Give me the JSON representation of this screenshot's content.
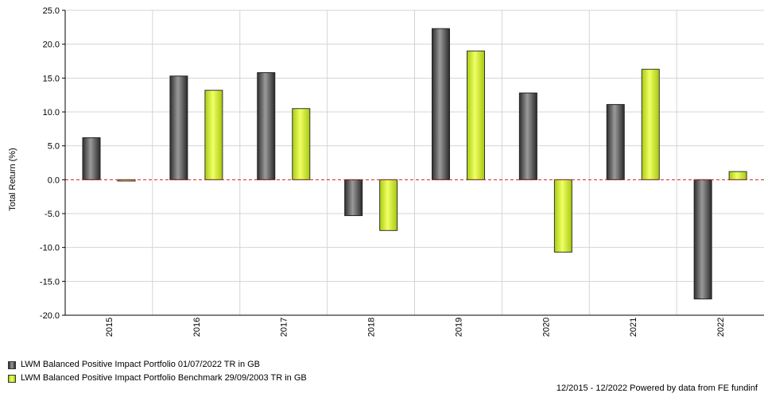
{
  "chart_data": {
    "type": "bar",
    "categories": [
      "2015",
      "2016",
      "2017",
      "2018",
      "2019",
      "2020",
      "2021",
      "2022"
    ],
    "series": [
      {
        "name": "LWM Balanced Positive Impact Portfolio 01/07/2022 TR in GB",
        "color": "#555555",
        "values": [
          6.2,
          15.3,
          15.8,
          -5.3,
          22.3,
          12.8,
          11.1,
          -17.6
        ]
      },
      {
        "name": "LWM Balanced Positive Impact Portfolio Benchmark 29/09/2003 TR in GB",
        "color": "#ccee33",
        "values": [
          -0.2,
          13.2,
          10.5,
          -7.5,
          19.0,
          -10.7,
          16.3,
          1.2
        ]
      }
    ],
    "ylabel": "Total Return (%)",
    "ylim": [
      -20.0,
      25.0
    ],
    "yticks": [
      "25.0",
      "20.0",
      "15.0",
      "10.0",
      "5.0",
      "0.0",
      "-5.0",
      "-10.0",
      "-15.0",
      "-20.0"
    ],
    "grid": true,
    "zero_line": "dashed red",
    "legend_position": "bottom-left"
  },
  "footer": "12/2015 - 12/2022 Powered by data from FE fundinf"
}
